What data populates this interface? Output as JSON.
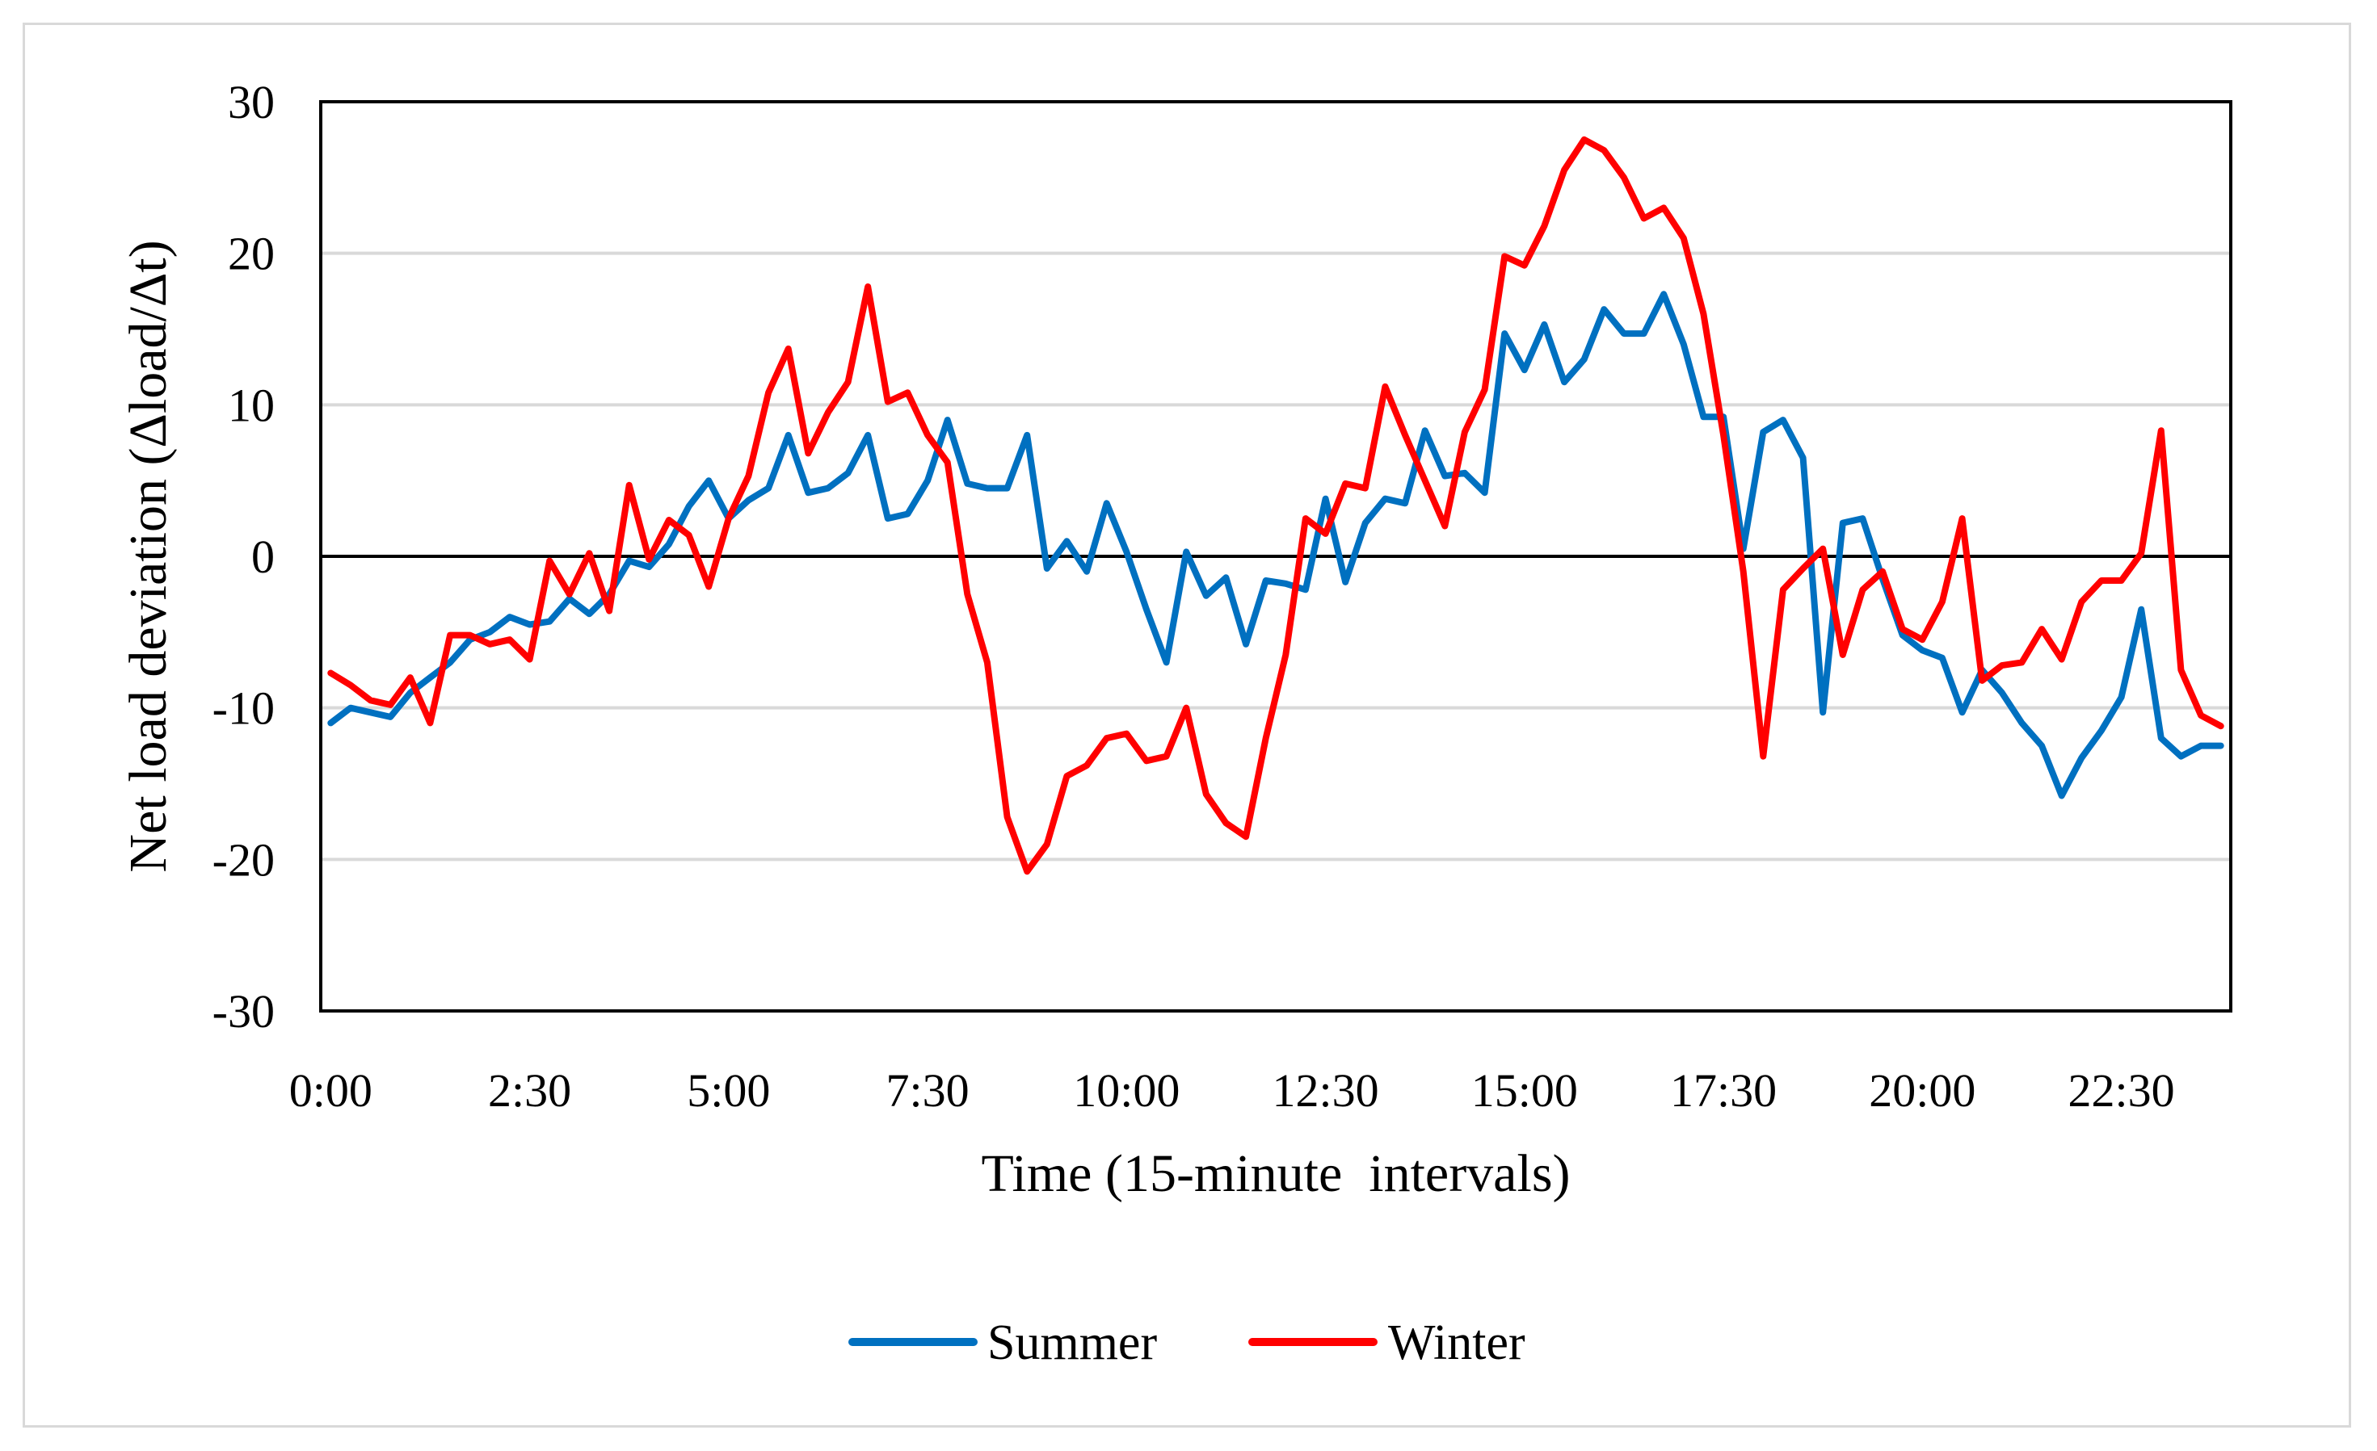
{
  "chart_data": {
    "type": "line",
    "title": "",
    "xlabel": "Time (15-minute  intervals)",
    "ylabel": "Net load deviation (Δload/Δt)",
    "ylim": [
      -30,
      30
    ],
    "yticks": [
      "30",
      "20",
      "10",
      "0",
      "-10",
      "-20",
      "-30"
    ],
    "ytick_values": [
      30,
      20,
      10,
      0,
      -10,
      -20,
      -30
    ],
    "xtick_labels": [
      "0:00",
      "2:30",
      "5:00",
      "7:30",
      "10:00",
      "12:30",
      "15:00",
      "17:30",
      "20:00",
      "22:30"
    ],
    "x_count": 96,
    "grid": true,
    "legend_position": "bottom",
    "series": [
      {
        "name": "Summer",
        "color": "#0070C0",
        "values": [
          -11,
          -10,
          -10.3,
          -10.6,
          -9,
          -8,
          -7,
          -5.5,
          -5,
          -4,
          -4.5,
          -4.3,
          -2.8,
          -3.8,
          -2.5,
          -0.3,
          -0.7,
          0.8,
          3.3,
          5,
          2.5,
          3.7,
          4.5,
          8,
          4.2,
          4.5,
          5.5,
          8,
          2.5,
          2.8,
          5,
          9,
          4.8,
          4.5,
          4.5,
          8,
          -0.8,
          1,
          -1,
          3.5,
          0.3,
          -3.5,
          -7,
          0.3,
          -2.6,
          -1.4,
          -5.8,
          -1.6,
          -1.8,
          -2.2,
          3.8,
          -1.7,
          2.2,
          3.8,
          3.5,
          8.3,
          5.3,
          5.5,
          4.2,
          14.7,
          12.3,
          15.3,
          11.5,
          13,
          16.3,
          14.7,
          14.7,
          17.3,
          14,
          9.2,
          9.2,
          0.5,
          8.2,
          9,
          6.5,
          -10.3,
          2.2,
          2.5,
          -1.5,
          -5.2,
          -6.2,
          -6.7,
          -10.3,
          -7.5,
          -9,
          -11,
          -12.5,
          -15.8,
          -13.3,
          -11.5,
          -9.3,
          -3.5,
          -12,
          -13.2,
          -12.5,
          -12.5
        ]
      },
      {
        "name": "Winter",
        "color": "#FF0000",
        "values": [
          -7.7,
          -8.5,
          -9.5,
          -9.8,
          -8,
          -11,
          -5.2,
          -5.2,
          -5.8,
          -5.5,
          -6.8,
          -0.3,
          -2.5,
          0.2,
          -3.6,
          4.7,
          -0.2,
          2.4,
          1.4,
          -2,
          2.5,
          5.3,
          10.8,
          13.7,
          6.8,
          9.5,
          11.5,
          17.8,
          10.2,
          10.8,
          8,
          6.2,
          -2.5,
          -7,
          -17.2,
          -20.8,
          -19,
          -14.5,
          -13.8,
          -12,
          -11.7,
          -13.5,
          -13.2,
          -10,
          -15.7,
          -17.6,
          -18.5,
          -12,
          -6.5,
          2.5,
          1.5,
          4.8,
          4.5,
          11.2,
          8,
          5,
          2,
          8.2,
          11,
          19.8,
          19.2,
          21.8,
          25.5,
          27.5,
          26.8,
          25,
          22.3,
          23,
          21,
          16,
          8,
          -1,
          -13.2,
          -2.2,
          -0.8,
          0.5,
          -6.5,
          -2.2,
          -1,
          -4.8,
          -5.5,
          -3,
          2.5,
          -8.2,
          -7.2,
          -7,
          -4.8,
          -6.8,
          -3,
          -1.6,
          -1.6,
          0.2,
          8.3,
          -7.5,
          -10.5,
          -11.2
        ]
      }
    ]
  }
}
